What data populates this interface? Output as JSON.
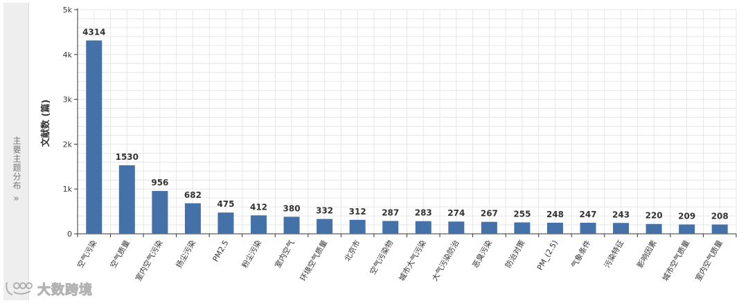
{
  "sidebar": {
    "tab_label": "主要主题分布",
    "chevron": "»"
  },
  "watermark": {
    "text": "大数跨境",
    "icon": "brand-logo-icon"
  },
  "colors": {
    "bar": "#4472a8",
    "grid": "#e6e6e6",
    "axis": "#333333",
    "side_tab_bg": "#eeeeee"
  },
  "chart_data": {
    "type": "bar",
    "title": "",
    "xlabel": "",
    "ylabel": "文献数 (篇)",
    "ylim": [
      0,
      5000
    ],
    "yticks": [
      0,
      1000,
      2000,
      3000,
      4000,
      5000
    ],
    "ytick_labels": [
      "0",
      "1k",
      "2k",
      "3k",
      "4k",
      "5k"
    ],
    "grid": true,
    "categories": [
      "空气污染",
      "空气质量",
      "室内空气污染",
      "扬尘污染",
      "PM2.5",
      "粉尘污染",
      "室内空气",
      "环境空气质量",
      "北京市",
      "空气污染物",
      "城市大气污染",
      "大气污染防治",
      "恶臭污染",
      "防治对策",
      "PM_(2.5)",
      "气象条件",
      "污染特征",
      "影响因素",
      "城市空气质量",
      "室内空气质量"
    ],
    "values": [
      4314,
      1530,
      956,
      682,
      475,
      412,
      380,
      332,
      312,
      287,
      283,
      274,
      267,
      255,
      248,
      247,
      243,
      220,
      209,
      208
    ],
    "data_labels": [
      "4314",
      "1530",
      "956",
      "682",
      "475",
      "412",
      "380",
      "332",
      "312",
      "287",
      "283",
      "274",
      "267",
      "255",
      "248",
      "247",
      "243",
      "220",
      "209",
      "208"
    ]
  }
}
